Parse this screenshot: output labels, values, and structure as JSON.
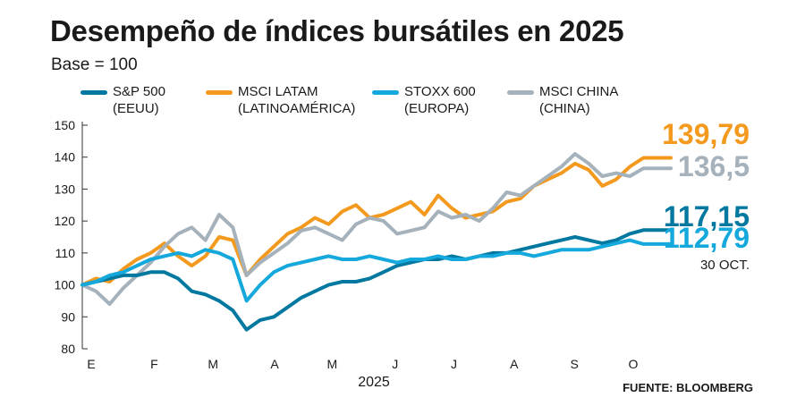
{
  "header": {
    "title": "Desempeño de índices bursátiles en 2025",
    "subtitle": "Base = 100"
  },
  "legend": [
    {
      "name": "S&P 500",
      "region": "(EEUU)",
      "color": "#00789f"
    },
    {
      "name": "MSCI LATAM",
      "region": "(LATINOAMÉRICA)",
      "color": "#f39a1e"
    },
    {
      "name": "STOXX 600",
      "region": "(EUROPA)",
      "color": "#15a8dc"
    },
    {
      "name": "MSCI CHINA",
      "region": "(CHINA)",
      "color": "#a5b1bb"
    }
  ],
  "end_values": {
    "msci_latam": "139,79",
    "msci_china": "136,5",
    "sp500": "117,15",
    "stoxx600": "112,79",
    "date": "30 OCT."
  },
  "source": "FUENTE: BLOOMBERG",
  "chart_data": {
    "type": "line",
    "title": "Desempeño de índices bursátiles en 2025",
    "subtitle": "Base = 100",
    "xlabel": "2025",
    "ylabel": "",
    "ylim": [
      80,
      150
    ],
    "yticks": [
      80,
      90,
      100,
      110,
      120,
      130,
      140,
      150
    ],
    "xlim": [
      1,
      44
    ],
    "month_ticks": [
      {
        "label": "E",
        "week": 1
      },
      {
        "label": "F",
        "week": 5.6
      },
      {
        "label": "M",
        "week": 9.9
      },
      {
        "label": "A",
        "week": 14.4
      },
      {
        "label": "M",
        "week": 18.6
      },
      {
        "label": "J",
        "week": 23.2
      },
      {
        "label": "J",
        "week": 27.5
      },
      {
        "label": "A",
        "week": 31.9
      },
      {
        "label": "S",
        "week": 36.3
      },
      {
        "label": "O",
        "week": 40.6
      }
    ],
    "grid": false,
    "legend_position": "top",
    "x": [
      1,
      2,
      3,
      4,
      5,
      6,
      7,
      8,
      9,
      10,
      11,
      12,
      13,
      14,
      15,
      16,
      17,
      18,
      19,
      20,
      21,
      22,
      23,
      24,
      25,
      26,
      27,
      28,
      29,
      30,
      31,
      32,
      33,
      34,
      35,
      36,
      37,
      38,
      39,
      40,
      41,
      42,
      43,
      44
    ],
    "series": [
      {
        "name": "MSCI LATAM",
        "color": "#f39a1e",
        "values": [
          100,
          102,
          101,
          105,
          108,
          110,
          113,
          109,
          106,
          109,
          115,
          114,
          103,
          108,
          112,
          116,
          118,
          121,
          119,
          123,
          125,
          121,
          122,
          124,
          126,
          122,
          128,
          124,
          121,
          122,
          123,
          126,
          127,
          131,
          133,
          135,
          138,
          136,
          131,
          133,
          137,
          139.79,
          139.79,
          139.79
        ]
      },
      {
        "name": "MSCI CHINA",
        "color": "#a5b1bb",
        "values": [
          100,
          98,
          94,
          99,
          103,
          107,
          112,
          116,
          118,
          114,
          122,
          118,
          103,
          107,
          110,
          113,
          117,
          118,
          116,
          114,
          119,
          121,
          120,
          116,
          117,
          118,
          123,
          121,
          122,
          120,
          124,
          129,
          128,
          131,
          134,
          137,
          141,
          138,
          134,
          135,
          134,
          136.5,
          136.5,
          136.5
        ]
      },
      {
        "name": "S&P 500",
        "color": "#00789f",
        "values": [
          100,
          101,
          102,
          103,
          103,
          104,
          104,
          102,
          98,
          97,
          95,
          92,
          86,
          89,
          90,
          93,
          96,
          98,
          100,
          101,
          101,
          102,
          104,
          106,
          107,
          108,
          108,
          109,
          108,
          109,
          110,
          110,
          111,
          112,
          113,
          114,
          115,
          114,
          113,
          114,
          116,
          117.15,
          117.15,
          117.15
        ]
      },
      {
        "name": "STOXX 600",
        "color": "#15a8dc",
        "values": [
          100,
          101,
          103,
          104,
          106,
          108,
          109,
          110,
          109,
          111,
          110,
          108,
          95,
          100,
          104,
          106,
          107,
          108,
          109,
          108,
          108,
          109,
          108,
          107,
          108,
          108,
          109,
          108,
          108,
          109,
          109,
          110,
          110,
          109,
          110,
          111,
          111,
          111,
          112,
          113,
          114,
          112.79,
          112.79,
          112.79
        ]
      }
    ]
  }
}
